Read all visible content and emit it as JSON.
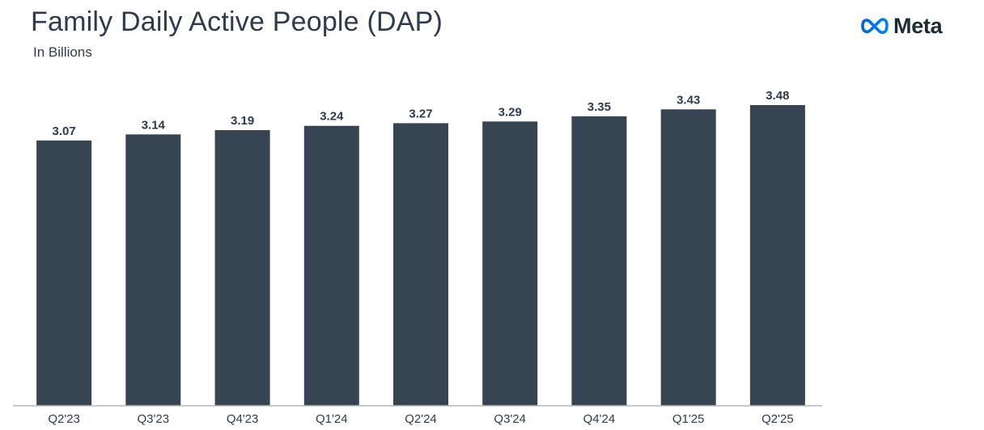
{
  "header": {
    "title": "Family Daily Active People (DAP)",
    "subtitle": "In Billions"
  },
  "logo": {
    "text": "Meta",
    "icon": "meta-infinity-logo",
    "color": "#0866ff"
  },
  "colors": {
    "bar": "#374553",
    "text": "#2f3b4c"
  },
  "chart_data": {
    "type": "bar",
    "title": "Family Daily Active People (DAP)",
    "subtitle": "In Billions",
    "xlabel": "",
    "ylabel": "",
    "categories": [
      "Q2'23",
      "Q3'23",
      "Q4'23",
      "Q1'24",
      "Q2'24",
      "Q3'24",
      "Q4'24",
      "Q1'25",
      "Q2'25"
    ],
    "values": [
      3.07,
      3.14,
      3.19,
      3.24,
      3.27,
      3.29,
      3.35,
      3.43,
      3.48
    ],
    "value_labels": [
      "3.07",
      "3.14",
      "3.19",
      "3.24",
      "3.27",
      "3.29",
      "3.35",
      "3.43",
      "3.48"
    ],
    "ylim": [
      0,
      3.48
    ],
    "grid": false,
    "legend": "none",
    "data_labels": true
  }
}
